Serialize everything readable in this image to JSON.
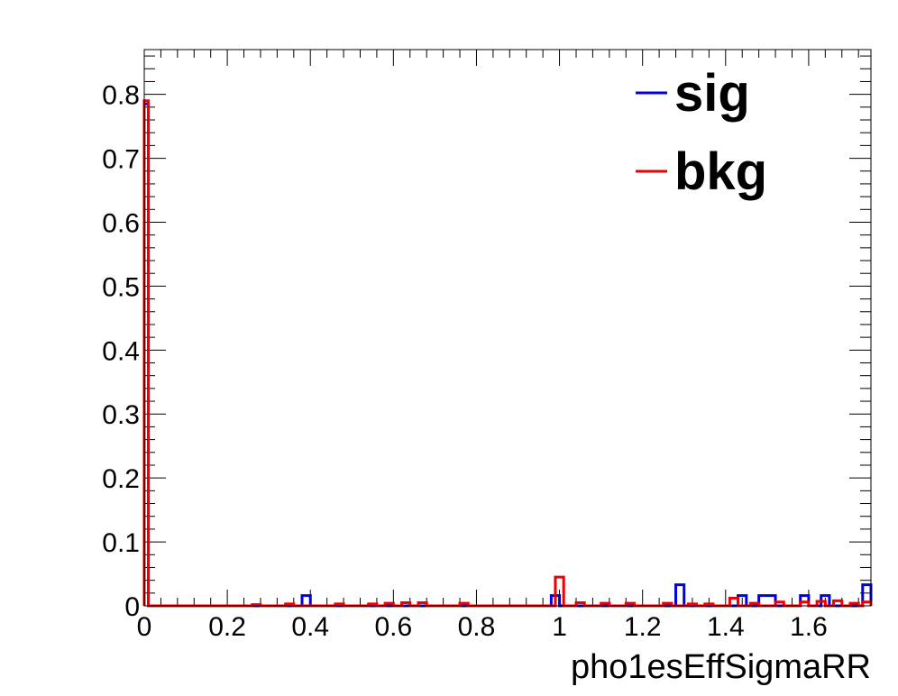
{
  "chart_data": {
    "type": "histogram-step",
    "xlabel": "pho1esEffSigmaRR",
    "ylabel": "",
    "xlim": [
      0,
      1.75
    ],
    "ylim": [
      0,
      0.87
    ],
    "x_ticks": [
      {
        "value": 0,
        "label": "0"
      },
      {
        "value": 0.2,
        "label": "0.2"
      },
      {
        "value": 0.4,
        "label": "0.4"
      },
      {
        "value": 0.6,
        "label": "0.6"
      },
      {
        "value": 0.8,
        "label": "0.8"
      },
      {
        "value": 1.0,
        "label": "1"
      },
      {
        "value": 1.2,
        "label": "1.2"
      },
      {
        "value": 1.4,
        "label": "1.4"
      },
      {
        "value": 1.6,
        "label": "1.6"
      }
    ],
    "y_ticks": [
      {
        "value": 0,
        "label": "0"
      },
      {
        "value": 0.1,
        "label": "0.1"
      },
      {
        "value": 0.2,
        "label": "0.2"
      },
      {
        "value": 0.3,
        "label": "0.3"
      },
      {
        "value": 0.4,
        "label": "0.4"
      },
      {
        "value": 0.5,
        "label": "0.5"
      },
      {
        "value": 0.6,
        "label": "0.6"
      },
      {
        "value": 0.7,
        "label": "0.7"
      },
      {
        "value": 0.8,
        "label": "0.8"
      }
    ],
    "legend_position": "top-right",
    "series": [
      {
        "name": "sig",
        "color": "#0000dd",
        "bins": [
          [
            0.0,
            0.01,
            0.785
          ],
          [
            0.38,
            0.4,
            0.016
          ],
          [
            0.98,
            1.0,
            0.016
          ],
          [
            1.28,
            1.3,
            0.033
          ],
          [
            1.43,
            1.45,
            0.016
          ],
          [
            1.48,
            1.52,
            0.016
          ],
          [
            1.58,
            1.6,
            0.016
          ],
          [
            1.63,
            1.65,
            0.016
          ],
          [
            1.73,
            1.75,
            0.033
          ]
        ]
      },
      {
        "name": "bkg",
        "color": "#ee0000",
        "bins": [
          [
            0.0,
            0.01,
            0.79
          ],
          [
            0.26,
            0.28,
            0.002
          ],
          [
            0.34,
            0.36,
            0.003
          ],
          [
            0.46,
            0.48,
            0.003
          ],
          [
            0.54,
            0.56,
            0.003
          ],
          [
            0.58,
            0.6,
            0.004
          ],
          [
            0.62,
            0.64,
            0.005
          ],
          [
            0.66,
            0.68,
            0.005
          ],
          [
            0.76,
            0.78,
            0.004
          ],
          [
            0.99,
            1.01,
            0.045
          ],
          [
            1.04,
            1.06,
            0.005
          ],
          [
            1.1,
            1.12,
            0.004
          ],
          [
            1.16,
            1.18,
            0.004
          ],
          [
            1.25,
            1.27,
            0.004
          ],
          [
            1.31,
            1.33,
            0.003
          ],
          [
            1.35,
            1.37,
            0.003
          ],
          [
            1.41,
            1.43,
            0.012
          ],
          [
            1.46,
            1.48,
            0.004
          ],
          [
            1.52,
            1.54,
            0.006
          ],
          [
            1.58,
            1.6,
            0.006
          ],
          [
            1.62,
            1.64,
            0.007
          ],
          [
            1.66,
            1.68,
            0.008
          ],
          [
            1.7,
            1.72,
            0.004
          ],
          [
            1.73,
            1.75,
            0.006
          ]
        ]
      }
    ]
  }
}
